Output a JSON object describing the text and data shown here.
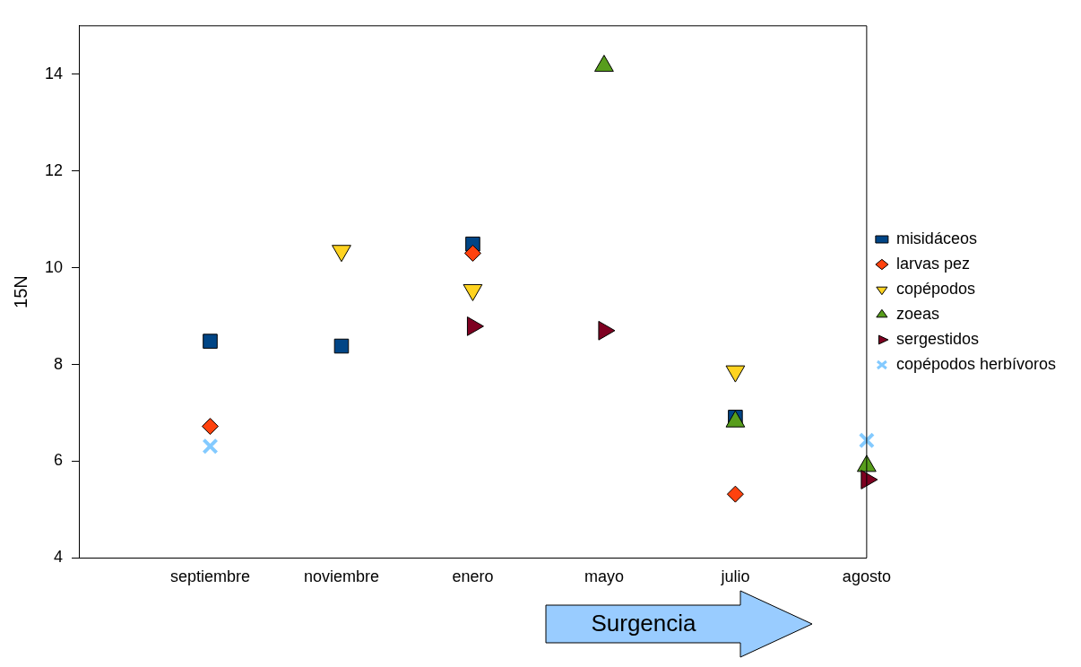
{
  "chart_data": {
    "type": "scatter",
    "ylabel": "15N",
    "categories": [
      null,
      "septiembre",
      "noviembre",
      "enero",
      "mayo",
      "julio",
      "agosto"
    ],
    "series": [
      {
        "name": "misidáceos",
        "color": "#004586",
        "marker": "square",
        "values": [
          null,
          8.48,
          8.38,
          10.49,
          null,
          6.91,
          null
        ]
      },
      {
        "name": "larvas pez",
        "color": "#ff420e",
        "marker": "diamond",
        "values": [
          null,
          6.72,
          null,
          10.3,
          null,
          5.32,
          null
        ]
      },
      {
        "name": "copépodos",
        "color": "#ffd320",
        "marker": "triangle-down",
        "values": [
          null,
          null,
          10.35,
          9.54,
          null,
          7.86,
          null
        ]
      },
      {
        "name": "zoeas",
        "color": "#579d1c",
        "marker": "triangle",
        "values": [
          null,
          null,
          null,
          null,
          14.17,
          6.82,
          5.9
        ]
      },
      {
        "name": "sergestidos",
        "color": "#7e0021",
        "marker": "triangle-right",
        "values": [
          null,
          null,
          null,
          8.79,
          8.7,
          null,
          5.62
        ]
      },
      {
        "name": "copépodos herbívoros",
        "color": "#83caff",
        "marker": "cross",
        "values": [
          null,
          6.31,
          null,
          null,
          null,
          null,
          6.43
        ]
      }
    ],
    "ylim": [
      4,
      15
    ],
    "yticks": [
      4,
      6,
      8,
      10,
      12,
      14
    ],
    "grid": false,
    "legend": "right",
    "annotations": [
      "Surgencia"
    ]
  }
}
